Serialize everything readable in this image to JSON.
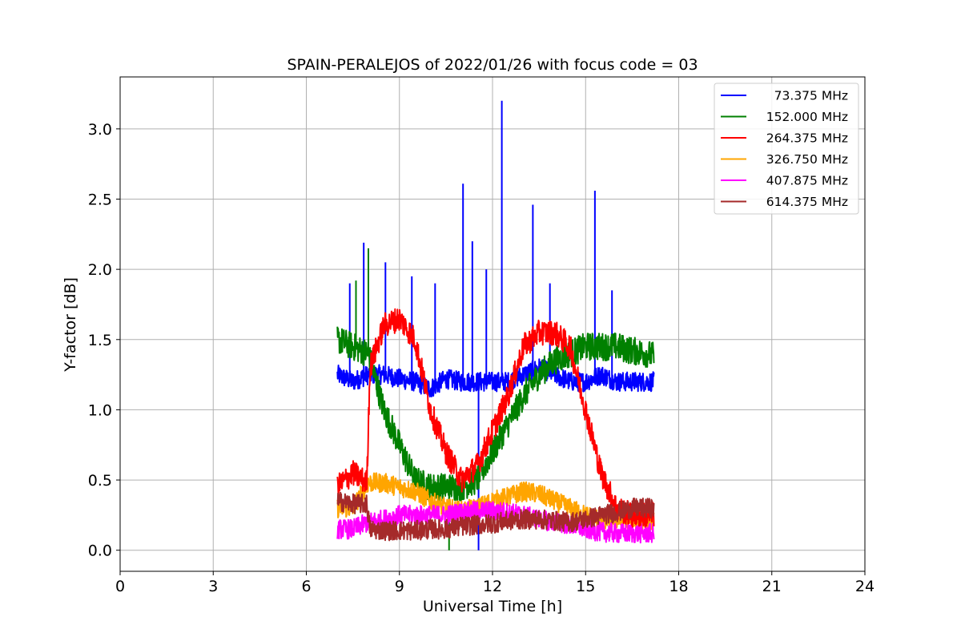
{
  "chart_data": {
    "type": "line",
    "title": "SPAIN-PERALEJOS of 2022/01/26 with focus code = 03",
    "xlabel": "Universal Time [h]",
    "ylabel": "Y-factor [dB]",
    "xlim": [
      0,
      24
    ],
    "ylim": [
      -0.15,
      3.37
    ],
    "xticks": [
      0,
      3,
      6,
      9,
      12,
      15,
      18,
      21,
      24
    ],
    "xtick_labels": [
      "0",
      "3",
      "6",
      "9",
      "12",
      "15",
      "18",
      "21",
      "24"
    ],
    "yticks": [
      0.0,
      0.5,
      1.0,
      1.5,
      2.0,
      2.5,
      3.0
    ],
    "ytick_labels": [
      "0.0",
      "0.5",
      "1.0",
      "1.5",
      "2.0",
      "2.5",
      "3.0"
    ],
    "grid": true,
    "legend_position": "top-right",
    "series": [
      {
        "name": "73.375 MHz",
        "color": "#0000ff",
        "x": [
          7.0,
          7.5,
          8.0,
          8.5,
          9.0,
          9.5,
          10.0,
          10.5,
          11.0,
          11.5,
          12.0,
          12.5,
          13.0,
          13.5,
          14.0,
          14.5,
          15.0,
          15.5,
          16.0,
          16.5,
          17.0,
          17.2
        ],
        "y": [
          1.25,
          1.2,
          1.25,
          1.25,
          1.22,
          1.2,
          1.15,
          1.22,
          1.2,
          1.2,
          1.2,
          1.2,
          1.25,
          1.3,
          1.25,
          1.2,
          1.2,
          1.25,
          1.2,
          1.2,
          1.2,
          1.2
        ],
        "spikes": [
          {
            "x": 7.4,
            "y": 1.9
          },
          {
            "x": 7.85,
            "y": 2.19
          },
          {
            "x": 8.55,
            "y": 2.05
          },
          {
            "x": 9.4,
            "y": 1.95
          },
          {
            "x": 10.15,
            "y": 1.9
          },
          {
            "x": 11.05,
            "y": 2.61
          },
          {
            "x": 11.35,
            "y": 2.2
          },
          {
            "x": 11.8,
            "y": 2.0
          },
          {
            "x": 12.3,
            "y": 3.2
          },
          {
            "x": 13.3,
            "y": 2.46
          },
          {
            "x": 13.85,
            "y": 1.9
          },
          {
            "x": 15.3,
            "y": 2.56
          },
          {
            "x": 15.85,
            "y": 1.85
          },
          {
            "x": 11.55,
            "y": 0.0
          }
        ]
      },
      {
        "name": "152.000 MHz",
        "color": "#008000",
        "x": [
          7.0,
          7.5,
          8.0,
          8.5,
          9.0,
          9.5,
          10.0,
          10.5,
          11.0,
          11.5,
          12.0,
          12.5,
          13.0,
          13.5,
          14.0,
          14.5,
          15.0,
          15.5,
          16.0,
          16.5,
          17.0,
          17.2
        ],
        "y": [
          1.5,
          1.45,
          1.4,
          1.0,
          0.75,
          0.5,
          0.45,
          0.45,
          0.45,
          0.5,
          0.7,
          0.9,
          1.1,
          1.25,
          1.35,
          1.4,
          1.45,
          1.45,
          1.45,
          1.42,
          1.4,
          1.38
        ],
        "spikes": [
          {
            "x": 7.6,
            "y": 1.92
          },
          {
            "x": 8.0,
            "y": 2.15
          },
          {
            "x": 10.6,
            "y": 0.0
          }
        ]
      },
      {
        "name": "264.375 MHz",
        "color": "#ff0000",
        "x": [
          7.0,
          7.5,
          7.95,
          8.05,
          8.5,
          9.0,
          9.5,
          10.0,
          10.5,
          11.0,
          11.5,
          12.0,
          12.5,
          13.0,
          13.5,
          14.0,
          14.5,
          15.0,
          15.5,
          16.0,
          16.5,
          17.2
        ],
        "y": [
          0.45,
          0.55,
          0.48,
          1.3,
          1.6,
          1.65,
          1.5,
          1.0,
          0.7,
          0.5,
          0.6,
          0.85,
          1.1,
          1.45,
          1.55,
          1.55,
          1.45,
          1.0,
          0.55,
          0.3,
          0.25,
          0.25
        ],
        "spikes": []
      },
      {
        "name": "326.750 MHz",
        "color": "#ffa500",
        "x": [
          7.0,
          7.5,
          8.0,
          8.5,
          9.0,
          9.5,
          10.0,
          10.5,
          11.0,
          11.5,
          12.0,
          12.5,
          13.0,
          13.5,
          14.0,
          14.5,
          15.0,
          15.5,
          16.0,
          16.5,
          17.0,
          17.2
        ],
        "y": [
          0.3,
          0.3,
          0.48,
          0.48,
          0.45,
          0.42,
          0.35,
          0.3,
          0.28,
          0.3,
          0.35,
          0.38,
          0.42,
          0.4,
          0.35,
          0.3,
          0.25,
          0.22,
          0.22,
          0.2,
          0.2,
          0.2
        ],
        "spikes": []
      },
      {
        "name": "407.875 MHz",
        "color": "#ff00ff",
        "x": [
          7.0,
          7.5,
          8.0,
          8.5,
          9.0,
          9.5,
          10.0,
          10.5,
          11.0,
          11.5,
          12.0,
          12.5,
          13.0,
          13.5,
          14.0,
          14.5,
          15.0,
          15.5,
          16.0,
          16.5,
          17.0,
          17.2
        ],
        "y": [
          0.15,
          0.15,
          0.2,
          0.22,
          0.25,
          0.25,
          0.25,
          0.25,
          0.27,
          0.28,
          0.28,
          0.27,
          0.25,
          0.22,
          0.2,
          0.18,
          0.15,
          0.13,
          0.12,
          0.12,
          0.12,
          0.12
        ],
        "spikes": []
      },
      {
        "name": "614.375 MHz",
        "color": "#a52a2a",
        "x": [
          7.0,
          7.5,
          7.95,
          8.05,
          8.5,
          9.0,
          9.5,
          10.0,
          10.5,
          11.0,
          11.5,
          12.0,
          12.5,
          13.0,
          13.5,
          14.0,
          14.5,
          15.0,
          15.5,
          16.0,
          16.5,
          17.2
        ],
        "y": [
          0.35,
          0.33,
          0.33,
          0.15,
          0.14,
          0.14,
          0.14,
          0.15,
          0.15,
          0.17,
          0.18,
          0.19,
          0.21,
          0.22,
          0.22,
          0.21,
          0.2,
          0.22,
          0.25,
          0.27,
          0.3,
          0.3
        ],
        "spikes": []
      }
    ]
  }
}
